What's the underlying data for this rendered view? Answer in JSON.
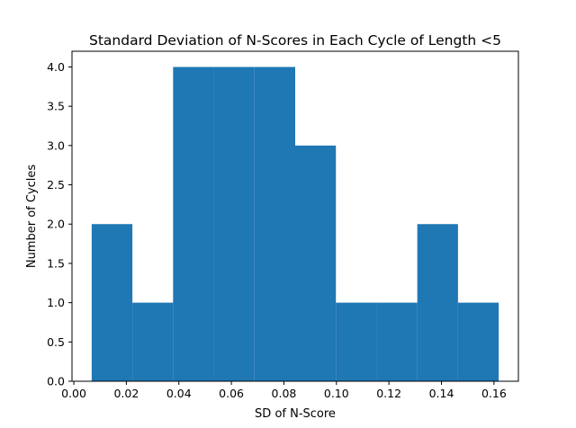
{
  "chart_data": {
    "type": "bar",
    "title": "Standard Deviation of N-Scores in Each Cycle of Length <5",
    "xlabel": "SD of N-Score",
    "ylabel": "Number of Cycles",
    "bin_edges": [
      0.0068,
      0.0223,
      0.0378,
      0.0533,
      0.0688,
      0.0843,
      0.0998,
      0.1153,
      0.1308,
      0.1463,
      0.1618
    ],
    "values": [
      2,
      1,
      4,
      4,
      4,
      3,
      1,
      1,
      2,
      1
    ],
    "xlim": [
      -0.0007,
      0.1693
    ],
    "ylim": [
      0,
      4.2
    ],
    "xticks": [
      0.0,
      0.02,
      0.04,
      0.06,
      0.08,
      0.1,
      0.12,
      0.14,
      0.16
    ],
    "xtick_labels": [
      "0.00",
      "0.02",
      "0.04",
      "0.06",
      "0.08",
      "0.10",
      "0.12",
      "0.14",
      "0.16"
    ],
    "yticks": [
      0,
      0.5,
      1,
      1.5,
      2,
      2.5,
      3,
      3.5,
      4
    ],
    "ytick_labels": [
      "0.0",
      "0.5",
      "1.0",
      "1.5",
      "2.0",
      "2.5",
      "3.0",
      "3.5",
      "4.0"
    ],
    "bar_color": "#1f77b4",
    "grid": false,
    "legend": "none"
  }
}
